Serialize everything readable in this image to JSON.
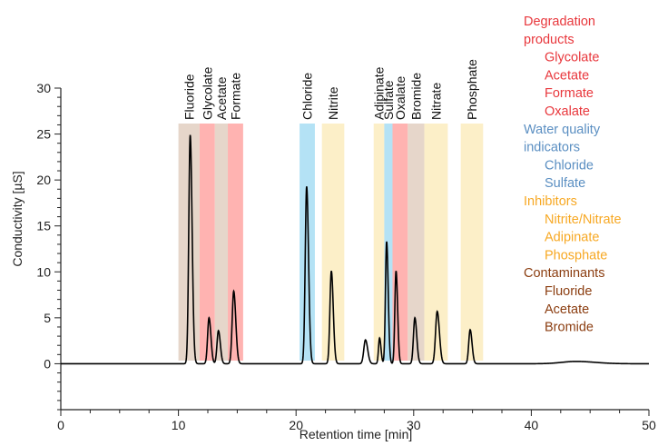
{
  "chart_data": {
    "type": "line",
    "title": "",
    "xlabel": "Retention time [min]",
    "ylabel": "Conductivity [µS]",
    "xlim": [
      0,
      50
    ],
    "ylim": [
      -5,
      30
    ],
    "x_ticks": [
      0,
      10,
      20,
      30,
      40,
      50
    ],
    "y_ticks": [
      0,
      5,
      10,
      15,
      20,
      25,
      30
    ],
    "grid": false,
    "legend_position": "top-right",
    "colors": {
      "degradation": "#e8373c",
      "water_quality": "#5b8fc2",
      "inhibitors": "#f7a823",
      "contaminants": "#8b3d10",
      "band_contaminant": "#e6d6ca",
      "band_degradation": "#ffb3b1",
      "band_water": "#b4e2f5",
      "band_inhibitor": "#fcefc8",
      "trace": "#000000"
    },
    "bands": [
      {
        "label": "Fluoride",
        "x0": 10.0,
        "x1": 11.8,
        "group": "contaminant"
      },
      {
        "label": "Glycolate",
        "x0": 11.8,
        "x1": 13.1,
        "group": "degradation"
      },
      {
        "label": "Acetate",
        "x0": 13.1,
        "x1": 14.2,
        "group": "contaminant"
      },
      {
        "label": "Formate",
        "x0": 14.2,
        "x1": 15.5,
        "group": "degradation"
      },
      {
        "label": "Chloride",
        "x0": 20.3,
        "x1": 21.6,
        "group": "water"
      },
      {
        "label": "Nitrite",
        "x0": 22.2,
        "x1": 24.1,
        "group": "inhibitor"
      },
      {
        "label": "Adipinate",
        "x0": 26.6,
        "x1": 27.5,
        "group": "inhibitor"
      },
      {
        "label": "Sulfate",
        "x0": 27.5,
        "x1": 28.2,
        "group": "water"
      },
      {
        "label": "Oxalate",
        "x0": 28.2,
        "x1": 29.5,
        "group": "degradation"
      },
      {
        "label": "Bromide",
        "x0": 29.5,
        "x1": 30.9,
        "group": "contaminant"
      },
      {
        "label": "Nitrate",
        "x0": 30.9,
        "x1": 32.9,
        "group": "inhibitor"
      },
      {
        "label": "Phosphate",
        "x0": 34.0,
        "x1": 35.9,
        "group": "inhibitor"
      }
    ],
    "peaks": [
      {
        "t": 11.0,
        "h": 24.9,
        "w": 0.12
      },
      {
        "t": 12.6,
        "h": 5.0,
        "w": 0.12
      },
      {
        "t": 13.4,
        "h": 3.6,
        "w": 0.12
      },
      {
        "t": 14.7,
        "h": 7.9,
        "w": 0.13
      },
      {
        "t": 20.9,
        "h": 19.3,
        "w": 0.12
      },
      {
        "t": 23.0,
        "h": 10.1,
        "w": 0.12
      },
      {
        "t": 25.9,
        "h": 2.6,
        "w": 0.14
      },
      {
        "t": 27.1,
        "h": 2.8,
        "w": 0.09
      },
      {
        "t": 27.7,
        "h": 13.3,
        "w": 0.1
      },
      {
        "t": 28.5,
        "h": 10.1,
        "w": 0.1
      },
      {
        "t": 30.1,
        "h": 5.0,
        "w": 0.12
      },
      {
        "t": 32.0,
        "h": 5.7,
        "w": 0.14
      },
      {
        "t": 34.8,
        "h": 3.7,
        "w": 0.12
      },
      {
        "t": 43.8,
        "h": 0.25,
        "w": 1.2
      }
    ],
    "legend": [
      {
        "label": "Degradation",
        "color": "degradation",
        "indent": false
      },
      {
        "label": "products",
        "color": "degradation",
        "indent": false
      },
      {
        "label": "Glycolate",
        "color": "degradation",
        "indent": true
      },
      {
        "label": "Acetate",
        "color": "degradation",
        "indent": true
      },
      {
        "label": "Formate",
        "color": "degradation",
        "indent": true
      },
      {
        "label": "Oxalate",
        "color": "degradation",
        "indent": true
      },
      {
        "label": "Water quality",
        "color": "water_quality",
        "indent": false
      },
      {
        "label": "indicators",
        "color": "water_quality",
        "indent": false
      },
      {
        "label": "Chloride",
        "color": "water_quality",
        "indent": true
      },
      {
        "label": "Sulfate",
        "color": "water_quality",
        "indent": true
      },
      {
        "label": "Inhibitors",
        "color": "inhibitors",
        "indent": false
      },
      {
        "label": "Nitrite/Nitrate",
        "color": "inhibitors",
        "indent": true
      },
      {
        "label": "Adipinate",
        "color": "inhibitors",
        "indent": true
      },
      {
        "label": "Phosphate",
        "color": "inhibitors",
        "indent": true
      },
      {
        "label": "Contaminants",
        "color": "contaminants",
        "indent": false
      },
      {
        "label": "Fluoride",
        "color": "contaminants",
        "indent": true
      },
      {
        "label": "Acetate",
        "color": "contaminants",
        "indent": true
      },
      {
        "label": "Bromide",
        "color": "contaminants",
        "indent": true
      }
    ]
  }
}
